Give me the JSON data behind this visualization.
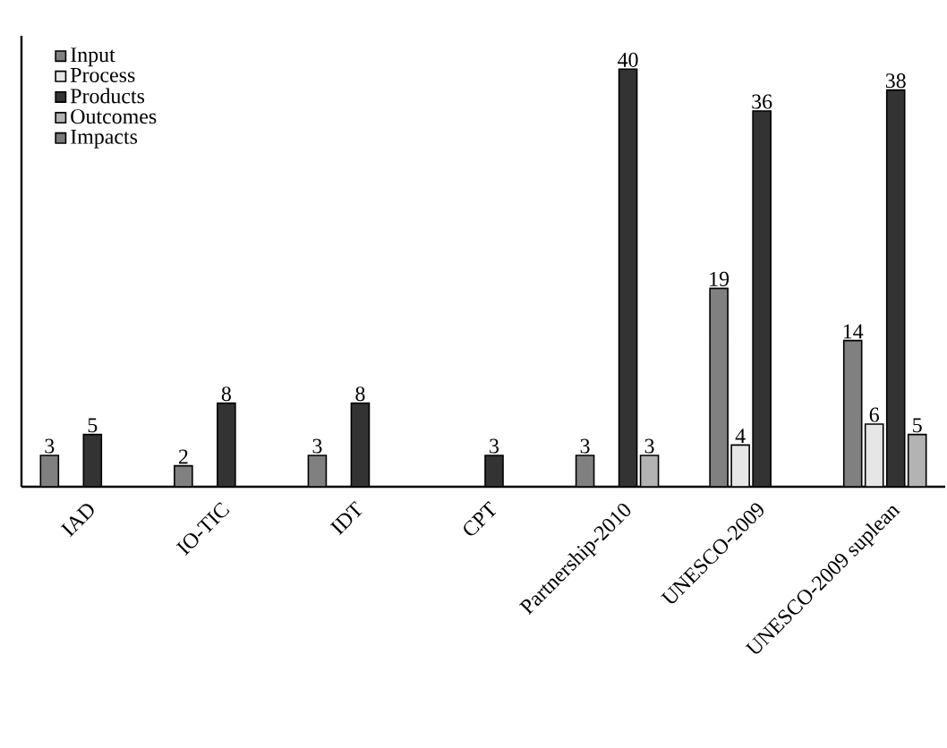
{
  "chart_data": {
    "type": "bar",
    "categories": [
      "IAD",
      "IO-TIC",
      "IDT",
      "CPT",
      "Partnership-2010",
      "UNESCO-2009",
      "UNESCO-2009 suplean"
    ],
    "series": [
      {
        "name": "Input",
        "color": "#808080",
        "values": [
          3,
          2,
          3,
          null,
          3,
          19,
          14
        ]
      },
      {
        "name": "Process",
        "color": "#e6e6e6",
        "values": [
          null,
          null,
          null,
          null,
          null,
          4,
          6
        ]
      },
      {
        "name": "Products",
        "color": "#333333",
        "values": [
          5,
          8,
          8,
          3,
          40,
          36,
          38
        ]
      },
      {
        "name": "Outcomes",
        "color": "#b3b3b3",
        "values": [
          null,
          null,
          null,
          null,
          3,
          null,
          5
        ]
      },
      {
        "name": "Impacts",
        "color": "#7a7a7a",
        "values": [
          null,
          null,
          null,
          null,
          null,
          null,
          null
        ]
      }
    ],
    "data_labels": true,
    "legend": "top left",
    "grid": false
  }
}
